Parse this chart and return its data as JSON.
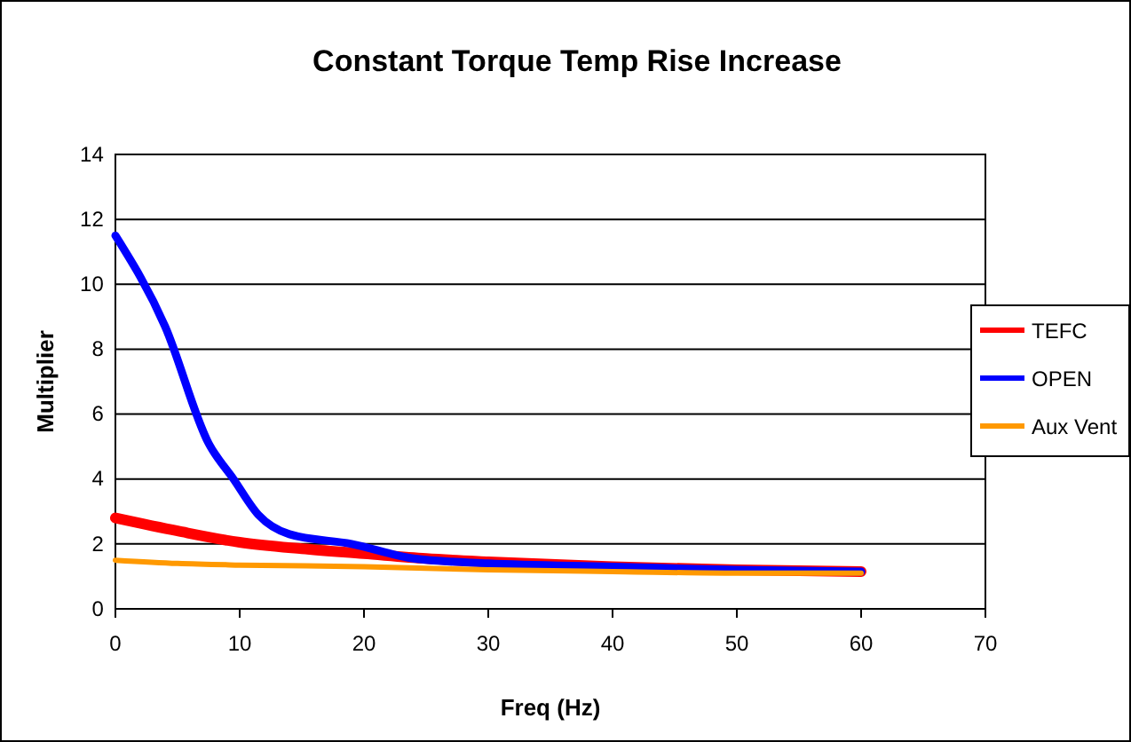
{
  "chart_data": {
    "type": "line",
    "title": "Constant Torque Temp Rise Increase",
    "xlabel": "Freq (Hz)",
    "ylabel": "Multiplier",
    "xlim": [
      0,
      70
    ],
    "xticks": [
      0,
      10,
      20,
      30,
      40,
      50,
      60,
      70
    ],
    "ylim": [
      0,
      14
    ],
    "yticks": [
      0,
      2,
      4,
      6,
      8,
      10,
      12,
      14
    ],
    "grid": "y",
    "legend": "right",
    "marker": "none",
    "line_style": "solid",
    "series": [
      {
        "name": "TEFC",
        "color": "#ff0000",
        "x": [
          0,
          5,
          10,
          15,
          20,
          25,
          30,
          40,
          50,
          60
        ],
        "values": [
          2.8,
          2.4,
          2.05,
          1.85,
          1.7,
          1.55,
          1.45,
          1.3,
          1.2,
          1.15
        ]
      },
      {
        "name": "OPEN",
        "color": "#0000ff",
        "x": [
          0,
          4,
          7.5,
          9.5,
          11.5,
          14,
          19,
          24,
          30,
          40,
          50,
          60
        ],
        "values": [
          11.5,
          8.7,
          5.1,
          4,
          2.9,
          2.3,
          2,
          1.55,
          1.4,
          1.3,
          1.2,
          1.15
        ]
      },
      {
        "name": "Aux Vent",
        "color": "#ff9900",
        "x": [
          0,
          5,
          10,
          20,
          30,
          40,
          50,
          60
        ],
        "values": [
          1.5,
          1.4,
          1.35,
          1.3,
          1.2,
          1.15,
          1.1,
          1.1
        ]
      }
    ]
  }
}
